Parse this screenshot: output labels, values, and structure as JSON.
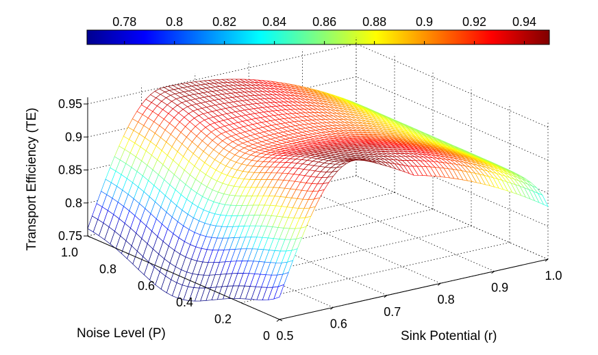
{
  "chart_data": {
    "type": "surface",
    "title": "",
    "xlabel": "Sink Potential (r)",
    "ylabel": "Noise Level (P)",
    "zlabel": "Transport Efficiency (TE)",
    "xlim": [
      0.5,
      1.0
    ],
    "ylim": [
      0,
      1.0
    ],
    "zlim": [
      0.75,
      0.95
    ],
    "x_ticks": [
      "0.5",
      "0.6",
      "0.7",
      "0.8",
      "0.9",
      "1.0"
    ],
    "y_ticks": [
      "0",
      "0.2",
      "0.4",
      "0.6",
      "0.8",
      "1.0"
    ],
    "z_ticks": [
      "0.75",
      "0.8",
      "0.85",
      "0.9",
      "0.95"
    ],
    "colorbar": {
      "ticks": [
        "0.78",
        "0.8",
        "0.82",
        "0.84",
        "0.86",
        "0.88",
        "0.9",
        "0.92",
        "0.94"
      ],
      "range": [
        0.765,
        0.95
      ],
      "colormap": "jet"
    },
    "grid": true,
    "surface_corners": {
      "r0.5_P1.0": 0.765,
      "r0.5_P0.0": 0.765,
      "r1.0_P1.0": 0.855,
      "r1.0_P0.0": 0.86,
      "peak": {
        "r": 0.64,
        "P": 0.95,
        "TE": 0.952
      }
    }
  }
}
